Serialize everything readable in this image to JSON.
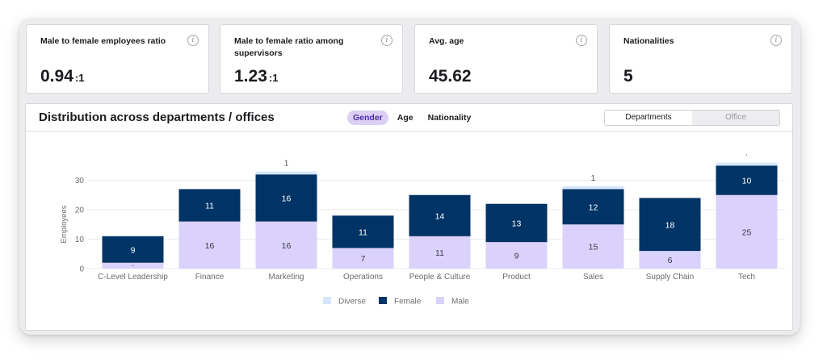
{
  "kpis": [
    {
      "title": "Male to female employees ratio",
      "value": "0.94",
      "suffix": ":1",
      "info": "i"
    },
    {
      "title": "Male to female ratio among supervisors",
      "value": "1.23",
      "suffix": ":1",
      "info": "i"
    },
    {
      "title": "Avg. age",
      "value": "45.62",
      "suffix": "",
      "info": "i"
    },
    {
      "title": "Nationalities",
      "value": "5",
      "suffix": "",
      "info": "i"
    }
  ],
  "panel": {
    "title": "Distribution across departments / offices",
    "tabs": [
      "Gender",
      "Age",
      "Nationality"
    ],
    "active_tab": "Gender",
    "view_toggle": [
      "Departments",
      "Office"
    ],
    "active_view": "Departments"
  },
  "colors": {
    "male": "#dbd2fb",
    "female": "#003466",
    "diverse": "#d7e7fb",
    "grid": "#ececf0",
    "axis_text": "#6c6c72",
    "active_tab_bg": "#dccff5"
  },
  "chart_data": {
    "type": "bar",
    "stacked": true,
    "categories": [
      "C-Level Leadership",
      "Finance",
      "Marketing",
      "Operations",
      "People & Culture",
      "Product",
      "Sales",
      "Supply Chain",
      "Tech"
    ],
    "series": [
      {
        "name": "Male",
        "values": [
          2,
          16,
          16,
          7,
          11,
          9,
          15,
          6,
          25
        ]
      },
      {
        "name": "Female",
        "values": [
          9,
          11,
          16,
          11,
          14,
          13,
          12,
          18,
          10
        ]
      },
      {
        "name": "Diverse",
        "values": [
          0,
          0,
          1,
          0,
          0,
          0,
          1,
          0,
          1
        ]
      }
    ],
    "data_labels": {
      "Male": [
        "·",
        "16",
        "16",
        "7",
        "11",
        "9",
        "15",
        "6",
        "25"
      ],
      "Female": [
        "9",
        "11",
        "16",
        "11",
        "14",
        "13",
        "12",
        "18",
        "10"
      ],
      "Diverse": [
        "",
        "",
        "1",
        "",
        "",
        "",
        "1",
        "",
        "·"
      ]
    },
    "ylabel": "Employees",
    "xlabel": "",
    "yticks": [
      0,
      10,
      20,
      30
    ],
    "ylim": [
      0,
      36
    ],
    "legend": [
      "Diverse",
      "Female",
      "Male"
    ],
    "legend_position": "bottom-center",
    "grid": true
  }
}
